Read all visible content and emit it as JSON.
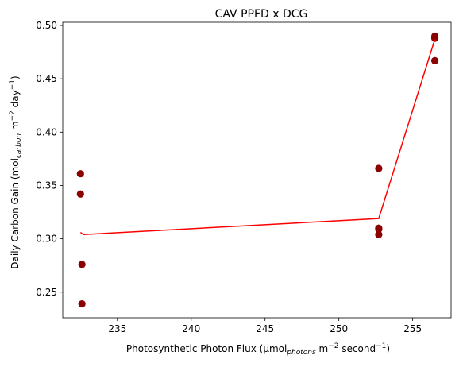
{
  "chart_data": {
    "type": "scatter",
    "title": "CAV PPFD x DCG",
    "xlabel": {
      "main": "Photosynthetic Photon Flux (μmol",
      "sub": "photons",
      "mid": " m",
      "sup1": "−2",
      "mid2": " second",
      "sup2": "−1",
      "end": ")"
    },
    "ylabel": {
      "main": "Daily Carbon Gain (mol",
      "sub": "carbon",
      "mid": " m",
      "sup1": "−2",
      "mid2": " day",
      "sup2": "−1",
      "end": ")"
    },
    "xlim": [
      231.3,
      257.6
    ],
    "ylim": [
      0.226,
      0.503
    ],
    "xticks": [
      235,
      240,
      245,
      250,
      255
    ],
    "xtick_labels": [
      "235",
      "240",
      "245",
      "250",
      "255"
    ],
    "yticks": [
      0.25,
      0.3,
      0.35,
      0.4,
      0.45,
      0.5
    ],
    "ytick_labels": [
      "0.25",
      "0.30",
      "0.35",
      "0.40",
      "0.45",
      "0.50"
    ],
    "grid": false,
    "points": {
      "color": "#8b0000",
      "x": [
        232.5,
        232.5,
        232.6,
        232.6,
        252.7,
        252.7,
        252.7,
        252.7,
        256.5,
        256.5,
        256.5
      ],
      "y": [
        0.361,
        0.342,
        0.276,
        0.239,
        0.366,
        0.31,
        0.309,
        0.304,
        0.49,
        0.488,
        0.467
      ]
    },
    "fit_line": {
      "color": "#ff0000",
      "x": [
        232.5,
        232.7,
        252.7,
        256.5
      ],
      "y": [
        0.306,
        0.304,
        0.319,
        0.487
      ]
    }
  }
}
